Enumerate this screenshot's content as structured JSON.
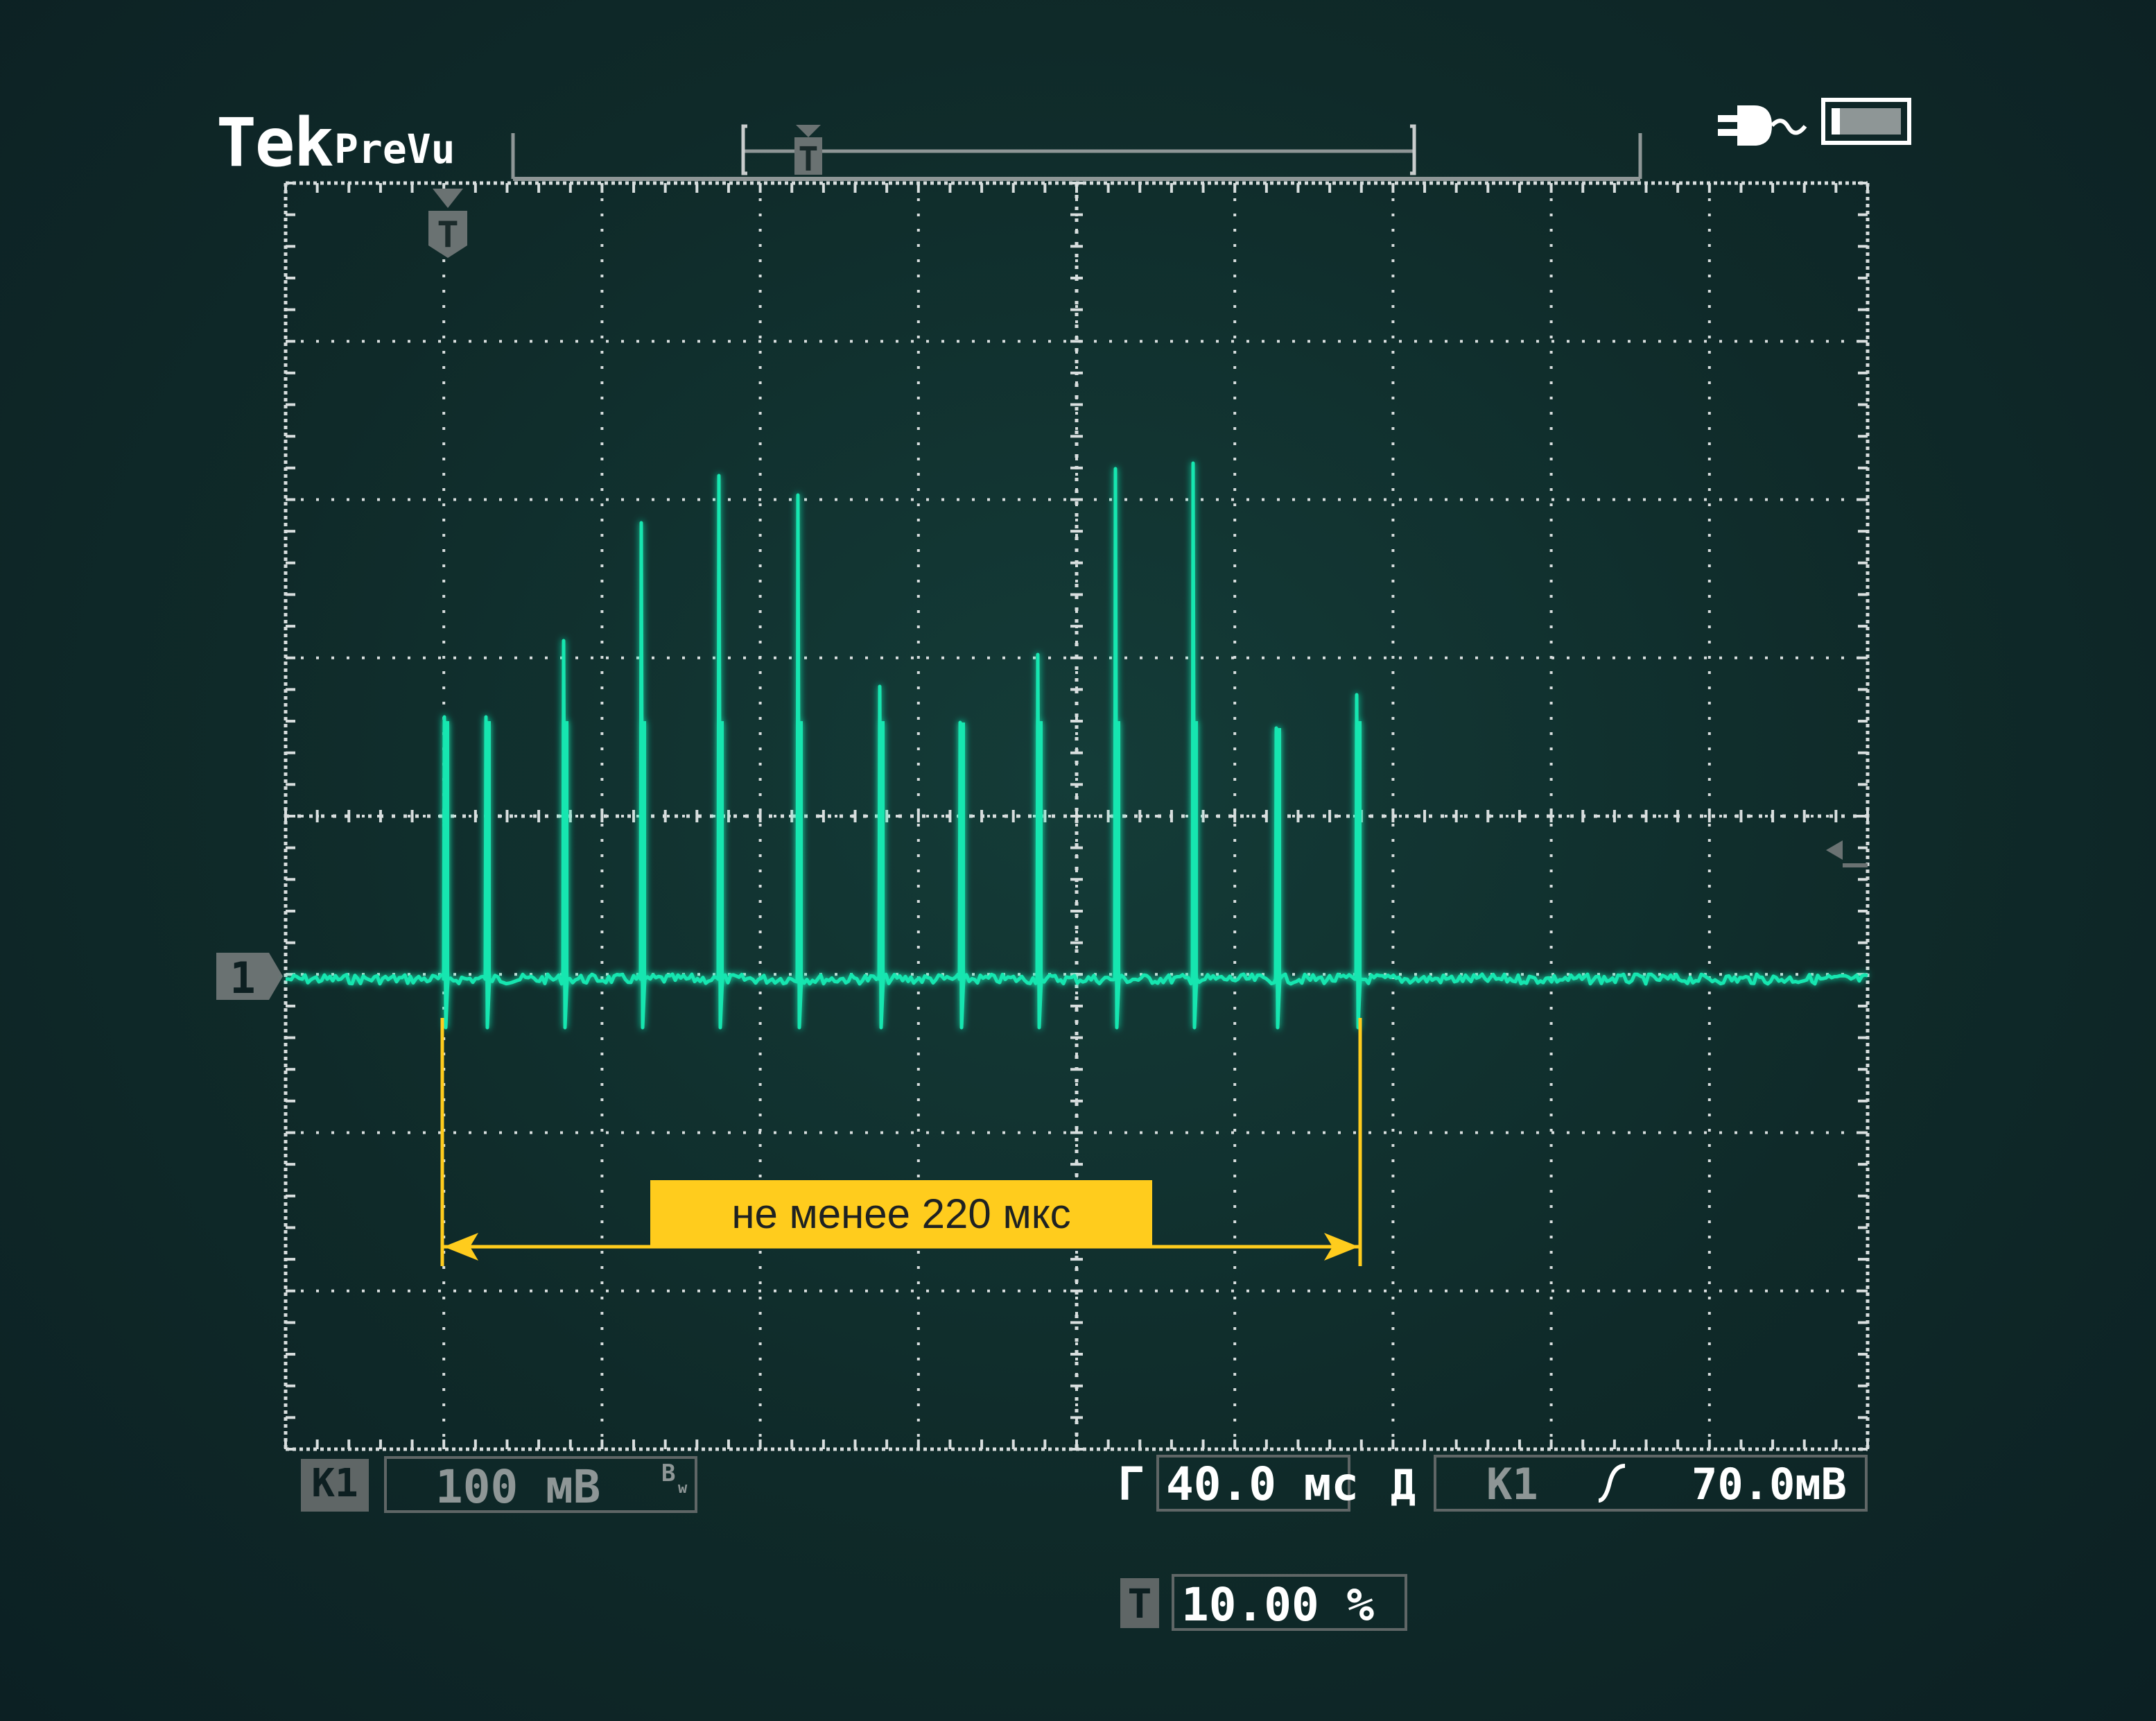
{
  "brand": {
    "tek": "Tek",
    "prevu": "PreVu"
  },
  "status": {
    "power_icon": "power-plug-icon",
    "battery_icon": "battery-icon",
    "battery_level": 0.12
  },
  "trigger_marker": {
    "label": "T"
  },
  "channel_marker": {
    "label": "1"
  },
  "channel_readout": {
    "tag": "К1",
    "scale": "100 мВ",
    "bw": "B",
    "bw_sub": "w"
  },
  "timebase": {
    "prefix": "Г",
    "value": "40.0 мс"
  },
  "trigger_readout": {
    "prefix": "Д",
    "source": "К1",
    "slope_icon": "rising-edge-icon",
    "level": "70.0мВ"
  },
  "trigger_position": {
    "tag": "T",
    "value": "10.00 %"
  },
  "annotation": {
    "label": "не менее 220 мкс"
  },
  "colors": {
    "trace": "#19e6b0",
    "annotation": "#ffcc1d",
    "grid": "#d8dede",
    "panel": "#5f6666"
  }
}
